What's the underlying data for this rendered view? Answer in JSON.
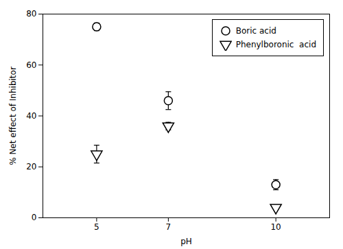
{
  "chart_data": {
    "type": "scatter",
    "xlabel": "pH",
    "ylabel": "% Net effect of Inhibitor",
    "x": [
      5,
      7,
      10
    ],
    "series": [
      {
        "name": "Boric acid",
        "color": "black",
        "marker": "circle",
        "values": [
          75,
          46,
          13
        ],
        "errors": [
          1.5,
          3.5,
          2.0
        ]
      },
      {
        "name": "Phenylboronic  acid",
        "color": "black",
        "marker": "triangle-down",
        "values": [
          25,
          36,
          4
        ],
        "errors": [
          3.5,
          1.5,
          0.8
        ]
      }
    ],
    "xlim": [
      3.5,
      11.5
    ],
    "ylim": [
      0,
      80
    ],
    "xticks": [
      5,
      7,
      10
    ],
    "yticks": [
      0,
      20,
      40,
      60,
      80
    ],
    "grid": false,
    "legend": "upper right"
  }
}
